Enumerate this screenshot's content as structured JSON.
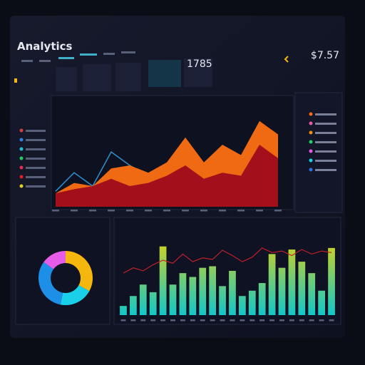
{
  "header": {
    "title": "Analytics"
  },
  "stats": [
    "1785",
    "$7.57"
  ],
  "chart_data": [
    {
      "type": "area",
      "ylim": [
        0,
        100
      ],
      "series": [
        {
          "color": "#ef6a12",
          "values": [
            13,
            23,
            20,
            37,
            40,
            33,
            43,
            67,
            43,
            60,
            50,
            83,
            70
          ]
        },
        {
          "color": "#a3101c",
          "values": [
            13,
            17,
            20,
            27,
            20,
            23,
            30,
            40,
            27,
            33,
            30,
            60,
            47
          ]
        },
        {
          "color": "#2f8fd0",
          "line": true,
          "values": [
            15,
            33,
            20,
            53,
            40,
            30,
            35,
            45,
            40,
            50,
            45,
            65,
            55
          ]
        }
      ]
    },
    {
      "type": "pie",
      "donut": true,
      "values": [
        33,
        20,
        32,
        15
      ],
      "colors": [
        "#f5b70d",
        "#1ad0e8",
        "#1e8fe6",
        "#e45ce8"
      ]
    },
    {
      "type": "bar",
      "ylim": [
        0,
        100
      ],
      "colors": [
        "#12c7c9",
        "#d9d21a"
      ],
      "values": [
        12,
        25,
        40,
        30,
        90,
        40,
        55,
        50,
        62,
        64,
        38,
        58,
        25,
        32,
        42,
        80,
        62,
        86,
        70,
        55,
        32,
        88
      ],
      "line": {
        "color": "#c0202a",
        "values": [
          55,
          62,
          58,
          66,
          72,
          68,
          80,
          70,
          75,
          73,
          85,
          78,
          70,
          76,
          88,
          82,
          84,
          78,
          86,
          80,
          84,
          82
        ]
      }
    }
  ]
}
